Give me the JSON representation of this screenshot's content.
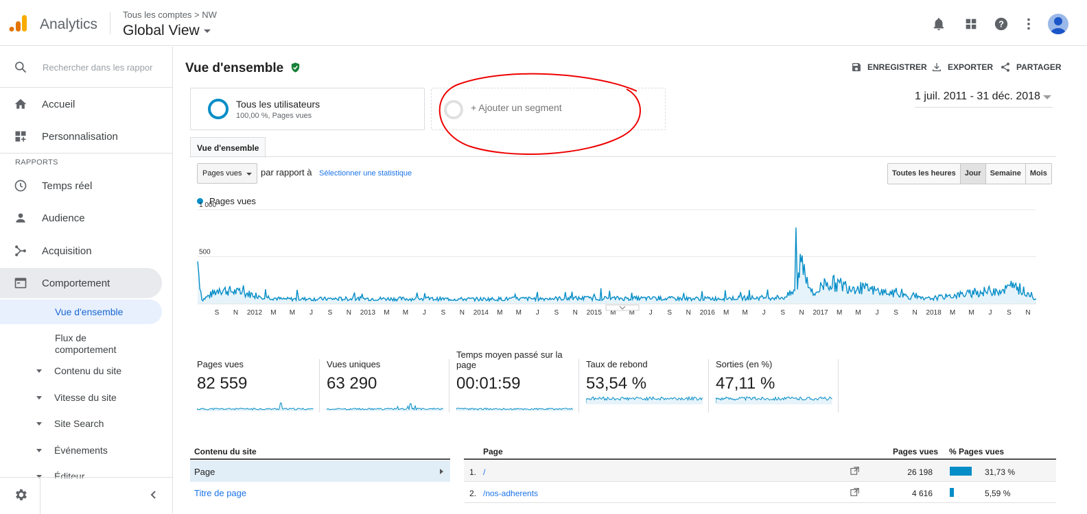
{
  "header": {
    "app_name": "Analytics",
    "breadcrumb": "Tous les comptes > NW",
    "view_name": "Global View"
  },
  "sidebar": {
    "search_placeholder": "Rechercher dans les rapports",
    "items": [
      {
        "label": "Accueil",
        "icon": "home-icon"
      },
      {
        "label": "Personnalisation",
        "icon": "dashboard-add-icon"
      }
    ],
    "section_label": "RAPPORTS",
    "reports": [
      {
        "label": "Temps réel",
        "icon": "clock-icon"
      },
      {
        "label": "Audience",
        "icon": "person-icon"
      },
      {
        "label": "Acquisition",
        "icon": "acquisition-icon"
      },
      {
        "label": "Comportement",
        "icon": "behavior-icon"
      }
    ],
    "sub_items": [
      {
        "label": "Vue d'ensemble"
      },
      {
        "label": "Flux de comportement"
      }
    ],
    "expandable": [
      {
        "label": "Contenu du site"
      },
      {
        "label": "Vitesse du site"
      },
      {
        "label": "Site Search"
      },
      {
        "label": "Événements"
      },
      {
        "label": "Éditeur"
      }
    ]
  },
  "main": {
    "title": "Vue d'ensemble",
    "toolbar": {
      "save": "ENREGISTRER",
      "export": "EXPORTER",
      "share": "PARTAGER"
    },
    "segment": {
      "name": "Tous les utilisateurs",
      "sub": "100,00 %, Pages vues"
    },
    "add_segment": "+ Ajouter un segment",
    "date_range": "1 juil. 2011 - 31 déc. 2018",
    "tab": "Vue d'ensemble",
    "metric": "Pages vues",
    "vs_text": "par rapport à",
    "vs_link": "Sélectionner une statistique",
    "granularity": [
      "Toutes les heures",
      "Jour",
      "Semaine",
      "Mois"
    ],
    "granularity_selected": "Jour"
  },
  "chart_data": {
    "type": "line",
    "title": "",
    "series": [
      {
        "name": "Pages vues",
        "color": "#058dc7"
      }
    ],
    "ylim": [
      0,
      1000
    ],
    "yticks": [
      "1 000",
      "500"
    ],
    "xticks": [
      "S",
      "N",
      "2012",
      "M",
      "M",
      "J",
      "S",
      "N",
      "2013",
      "M",
      "M",
      "J",
      "S",
      "N",
      "2014",
      "M",
      "M",
      "J",
      "S",
      "N",
      "2015",
      "M",
      "M",
      "J",
      "S",
      "N",
      "2016",
      "M",
      "M",
      "J",
      "S",
      "N",
      "2017",
      "M",
      "M",
      "J",
      "S",
      "N",
      "2018",
      "M",
      "M",
      "J",
      "S",
      "N"
    ],
    "x": [
      "2011-07-01",
      "2011-07-15",
      "2011-09-10",
      "2012-04-01",
      "2013-01-01",
      "2014-01-01",
      "2015-01-01",
      "2016-01-01",
      "2016-10-01",
      "2016-11-02",
      "2016-11-06",
      "2016-11-11",
      "2016-11-20",
      "2017-01-01",
      "2017-02-10",
      "2018-01-01",
      "2018-11-01",
      "2018-12-31"
    ],
    "values": [
      450,
      40,
      160,
      50,
      55,
      50,
      60,
      55,
      70,
      140,
      810,
      150,
      530,
      90,
      240,
      50,
      180,
      50
    ]
  },
  "kpis": [
    {
      "label": "Pages vues",
      "value": "82 559"
    },
    {
      "label": "Vues uniques",
      "value": "63 290"
    },
    {
      "label": "Temps moyen passé sur la page",
      "value": "00:01:59"
    },
    {
      "label": "Taux de rebond",
      "value": "53,54 %"
    },
    {
      "label": "Sorties (en %)",
      "value": "47,11 %"
    }
  ],
  "left_table": {
    "header": "Contenu du site",
    "rows": [
      "Page",
      "Titre de page"
    ]
  },
  "right_table": {
    "headers": {
      "page": "Page",
      "views": "Pages vues",
      "pct": "% Pages vues"
    },
    "rows": [
      {
        "num": "1.",
        "page": "/",
        "views": "26 198",
        "pct": "31,73 %",
        "share": 0.3173
      },
      {
        "num": "2.",
        "page": "/nos-adherents",
        "views": "4 616",
        "pct": "5,59 %",
        "share": 0.0559
      }
    ]
  }
}
